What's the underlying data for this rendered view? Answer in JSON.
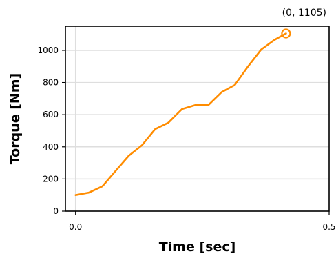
{
  "chart_data": {
    "type": "line",
    "title": "",
    "xlabel": "Time [sec]",
    "ylabel": "Torque [Nm]",
    "xlim": [
      -0.02,
      0.5
    ],
    "ylim": [
      0,
      1150
    ],
    "x_ticks": [
      0.0,
      0.5
    ],
    "x_tick_labels": [
      "0.0",
      "0.5"
    ],
    "y_ticks": [
      0,
      200,
      400,
      600,
      800,
      1000
    ],
    "y_tick_labels": [
      "0",
      "200",
      "400",
      "600",
      "800",
      "1000"
    ],
    "grid": "horizontal",
    "legend": "none",
    "series": [
      {
        "color": "#ff8c00",
        "x": [
          0.0,
          0.026,
          0.053,
          0.079,
          0.105,
          0.131,
          0.157,
          0.183,
          0.21,
          0.236,
          0.262,
          0.288,
          0.314,
          0.34,
          0.366,
          0.392,
          0.415
        ],
        "y": [
          100,
          115,
          155,
          250,
          345,
          410,
          510,
          550,
          635,
          660,
          660,
          740,
          785,
          900,
          1005,
          1065,
          1105
        ]
      }
    ],
    "annotation": {
      "text": "(0, 1105)",
      "marker": "open-circle",
      "x": 0.415,
      "y": 1105
    }
  }
}
